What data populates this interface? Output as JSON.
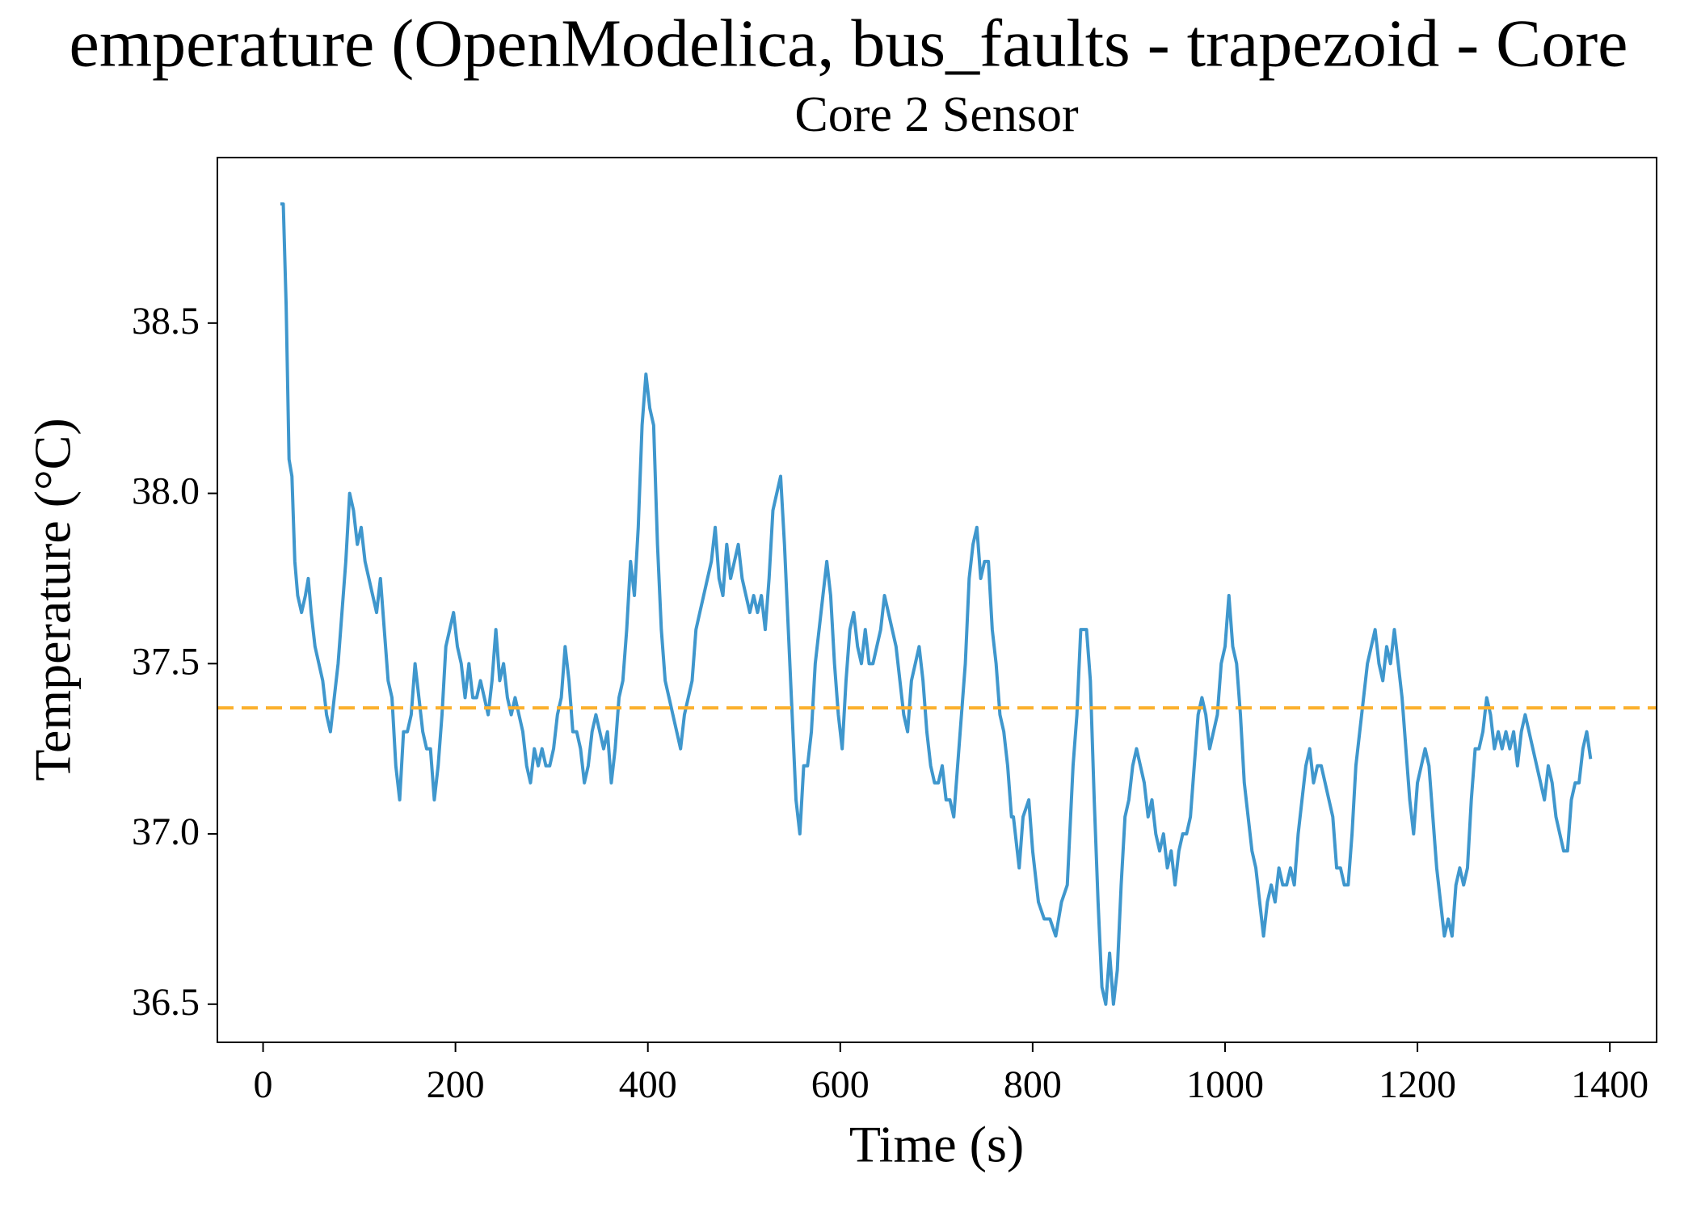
{
  "chart_data": {
    "type": "line",
    "title": "emperature (OpenModelica, bus_faults - trapezoid - Core",
    "subtitle": "Core 2 Sensor",
    "xlabel": "Time (s)",
    "ylabel": "Temperature (°C)",
    "xlim": [
      -47.5,
      1448.6
    ],
    "ylim": [
      36.388,
      38.986
    ],
    "xticks": [
      0,
      200,
      400,
      600,
      800,
      1000,
      1200,
      1400
    ],
    "yticks": [
      36.5,
      {
        "value": 37,
        "label": "37.0"
      },
      37.5,
      {
        "value": 38,
        "label": "38.0"
      },
      38.5
    ],
    "grid": false,
    "reference_line": {
      "value": 37.37,
      "color": "#fbb02d",
      "style": "dashed"
    },
    "x": [
      18,
      21,
      24,
      27,
      30,
      33,
      36,
      40,
      44,
      47,
      50,
      54,
      58,
      62,
      66,
      70,
      74,
      78,
      82,
      86,
      90,
      94,
      98,
      102,
      106,
      110,
      114,
      118,
      122,
      126,
      130,
      134,
      138,
      142,
      146,
      150,
      154,
      158,
      162,
      166,
      170,
      174,
      178,
      182,
      186,
      190,
      194,
      198,
      202,
      206,
      210,
      214,
      218,
      222,
      226,
      230,
      234,
      238,
      242,
      246,
      250,
      254,
      258,
      262,
      266,
      270,
      274,
      278,
      282,
      286,
      290,
      294,
      298,
      302,
      306,
      310,
      314,
      318,
      322,
      326,
      330,
      334,
      338,
      342,
      346,
      350,
      354,
      358,
      362,
      366,
      370,
      374,
      378,
      382,
      386,
      390,
      394,
      398,
      402,
      406,
      410,
      414,
      418,
      422,
      426,
      430,
      434,
      438,
      442,
      446,
      450,
      454,
      458,
      462,
      466,
      470,
      474,
      478,
      482,
      486,
      490,
      494,
      498,
      502,
      506,
      510,
      514,
      518,
      522,
      526,
      530,
      534,
      538,
      542,
      546,
      550,
      554,
      558,
      562,
      566,
      570,
      574,
      578,
      582,
      586,
      590,
      594,
      598,
      602,
      606,
      610,
      614,
      618,
      622,
      626,
      630,
      634,
      638,
      642,
      646,
      650,
      654,
      658,
      662,
      666,
      670,
      674,
      678,
      682,
      686,
      690,
      694,
      698,
      702,
      706,
      710,
      714,
      718,
      722,
      726,
      730,
      734,
      738,
      742,
      746,
      750,
      754,
      758,
      762,
      766,
      770,
      774,
      778,
      780,
      786,
      790,
      796,
      800,
      806,
      812,
      818,
      824,
      830,
      836,
      842,
      846,
      850,
      856,
      860,
      864,
      868,
      872,
      876,
      880,
      884,
      888,
      892,
      896,
      900,
      904,
      908,
      912,
      916,
      920,
      924,
      928,
      932,
      936,
      940,
      944,
      948,
      952,
      956,
      960,
      964,
      968,
      972,
      976,
      980,
      984,
      988,
      992,
      996,
      1000,
      1004,
      1008,
      1012,
      1016,
      1020,
      1024,
      1028,
      1032,
      1036,
      1040,
      1044,
      1048,
      1052,
      1056,
      1060,
      1064,
      1068,
      1072,
      1076,
      1080,
      1084,
      1088,
      1092,
      1096,
      1100,
      1104,
      1108,
      1112,
      1116,
      1120,
      1124,
      1128,
      1132,
      1136,
      1140,
      1144,
      1148,
      1152,
      1156,
      1160,
      1164,
      1168,
      1172,
      1176,
      1180,
      1184,
      1188,
      1192,
      1196,
      1200,
      1204,
      1208,
      1212,
      1216,
      1220,
      1224,
      1228,
      1232,
      1236,
      1240,
      1244,
      1248,
      1252,
      1256,
      1260,
      1264,
      1268,
      1272,
      1276,
      1280,
      1284,
      1288,
      1292,
      1296,
      1300,
      1304,
      1308,
      1312,
      1316,
      1320,
      1324,
      1328,
      1332,
      1336,
      1340,
      1344,
      1348,
      1352,
      1356,
      1360,
      1364,
      1368,
      1372,
      1376,
      1380
    ],
    "series": [
      {
        "name": "Core 2 Sensor",
        "color": "#3f97cd",
        "values": [
          38.85,
          38.85,
          38.55,
          38.1,
          38.05,
          37.8,
          37.7,
          37.65,
          37.7,
          37.75,
          37.65,
          37.55,
          37.5,
          37.45,
          37.35,
          37.3,
          37.4,
          37.5,
          37.65,
          37.8,
          38.0,
          37.95,
          37.85,
          37.9,
          37.8,
          37.75,
          37.7,
          37.65,
          37.75,
          37.6,
          37.45,
          37.4,
          37.2,
          37.1,
          37.3,
          37.3,
          37.35,
          37.5,
          37.4,
          37.3,
          37.25,
          37.25,
          37.1,
          37.2,
          37.35,
          37.55,
          37.6,
          37.65,
          37.55,
          37.5,
          37.4,
          37.5,
          37.4,
          37.4,
          37.45,
          37.4,
          37.35,
          37.45,
          37.6,
          37.45,
          37.5,
          37.4,
          37.35,
          37.4,
          37.35,
          37.3,
          37.2,
          37.15,
          37.25,
          37.2,
          37.25,
          37.2,
          37.2,
          37.25,
          37.35,
          37.4,
          37.55,
          37.45,
          37.3,
          37.3,
          37.25,
          37.15,
          37.2,
          37.3,
          37.35,
          37.3,
          37.25,
          37.3,
          37.15,
          37.25,
          37.4,
          37.45,
          37.6,
          37.8,
          37.7,
          37.9,
          38.2,
          38.35,
          38.25,
          38.2,
          37.85,
          37.6,
          37.45,
          37.4,
          37.35,
          37.3,
          37.25,
          37.35,
          37.4,
          37.45,
          37.6,
          37.65,
          37.7,
          37.75,
          37.8,
          37.9,
          37.75,
          37.7,
          37.85,
          37.75,
          37.8,
          37.85,
          37.75,
          37.7,
          37.65,
          37.7,
          37.65,
          37.7,
          37.6,
          37.75,
          37.95,
          38.0,
          38.05,
          37.85,
          37.6,
          37.35,
          37.1,
          37.0,
          37.2,
          37.2,
          37.3,
          37.5,
          37.6,
          37.7,
          37.8,
          37.7,
          37.5,
          37.35,
          37.25,
          37.45,
          37.6,
          37.65,
          37.55,
          37.5,
          37.6,
          37.5,
          37.5,
          37.55,
          37.6,
          37.7,
          37.65,
          37.6,
          37.55,
          37.45,
          37.35,
          37.3,
          37.45,
          37.5,
          37.55,
          37.45,
          37.3,
          37.2,
          37.15,
          37.15,
          37.2,
          37.1,
          37.1,
          37.05,
          37.2,
          37.35,
          37.5,
          37.75,
          37.85,
          37.9,
          37.75,
          37.8,
          37.8,
          37.6,
          37.5,
          37.35,
          37.3,
          37.2,
          37.05,
          37.05,
          36.9,
          37.05,
          37.1,
          36.95,
          36.8,
          36.75,
          36.75,
          36.7,
          36.8,
          36.85,
          37.2,
          37.35,
          37.6,
          37.6,
          37.45,
          37.1,
          36.8,
          36.55,
          36.5,
          36.65,
          36.5,
          36.6,
          36.85,
          37.05,
          37.1,
          37.2,
          37.25,
          37.2,
          37.15,
          37.05,
          37.1,
          37.0,
          36.95,
          37.0,
          36.9,
          36.95,
          36.85,
          36.95,
          37.0,
          37.0,
          37.05,
          37.2,
          37.35,
          37.4,
          37.35,
          37.25,
          37.3,
          37.35,
          37.5,
          37.55,
          37.7,
          37.55,
          37.5,
          37.35,
          37.15,
          37.05,
          36.95,
          36.9,
          36.8,
          36.7,
          36.8,
          36.85,
          36.8,
          36.9,
          36.85,
          36.85,
          36.9,
          36.85,
          37.0,
          37.1,
          37.2,
          37.25,
          37.15,
          37.2,
          37.2,
          37.15,
          37.1,
          37.05,
          36.9,
          36.9,
          36.85,
          36.85,
          37.0,
          37.2,
          37.3,
          37.4,
          37.5,
          37.55,
          37.6,
          37.5,
          37.45,
          37.55,
          37.5,
          37.6,
          37.5,
          37.4,
          37.25,
          37.1,
          37.0,
          37.15,
          37.2,
          37.25,
          37.2,
          37.05,
          36.9,
          36.8,
          36.7,
          36.75,
          36.7,
          36.85,
          36.9,
          36.85,
          36.9,
          37.1,
          37.25,
          37.25,
          37.3,
          37.4,
          37.35,
          37.25,
          37.3,
          37.25,
          37.3,
          37.25,
          37.3,
          37.2,
          37.3,
          37.35,
          37.3,
          37.25,
          37.2,
          37.15,
          37.1,
          37.2,
          37.15,
          37.05,
          37.0,
          36.95,
          36.95,
          37.1,
          37.15,
          37.15,
          37.25,
          37.3,
          37.22
        ]
      }
    ]
  }
}
